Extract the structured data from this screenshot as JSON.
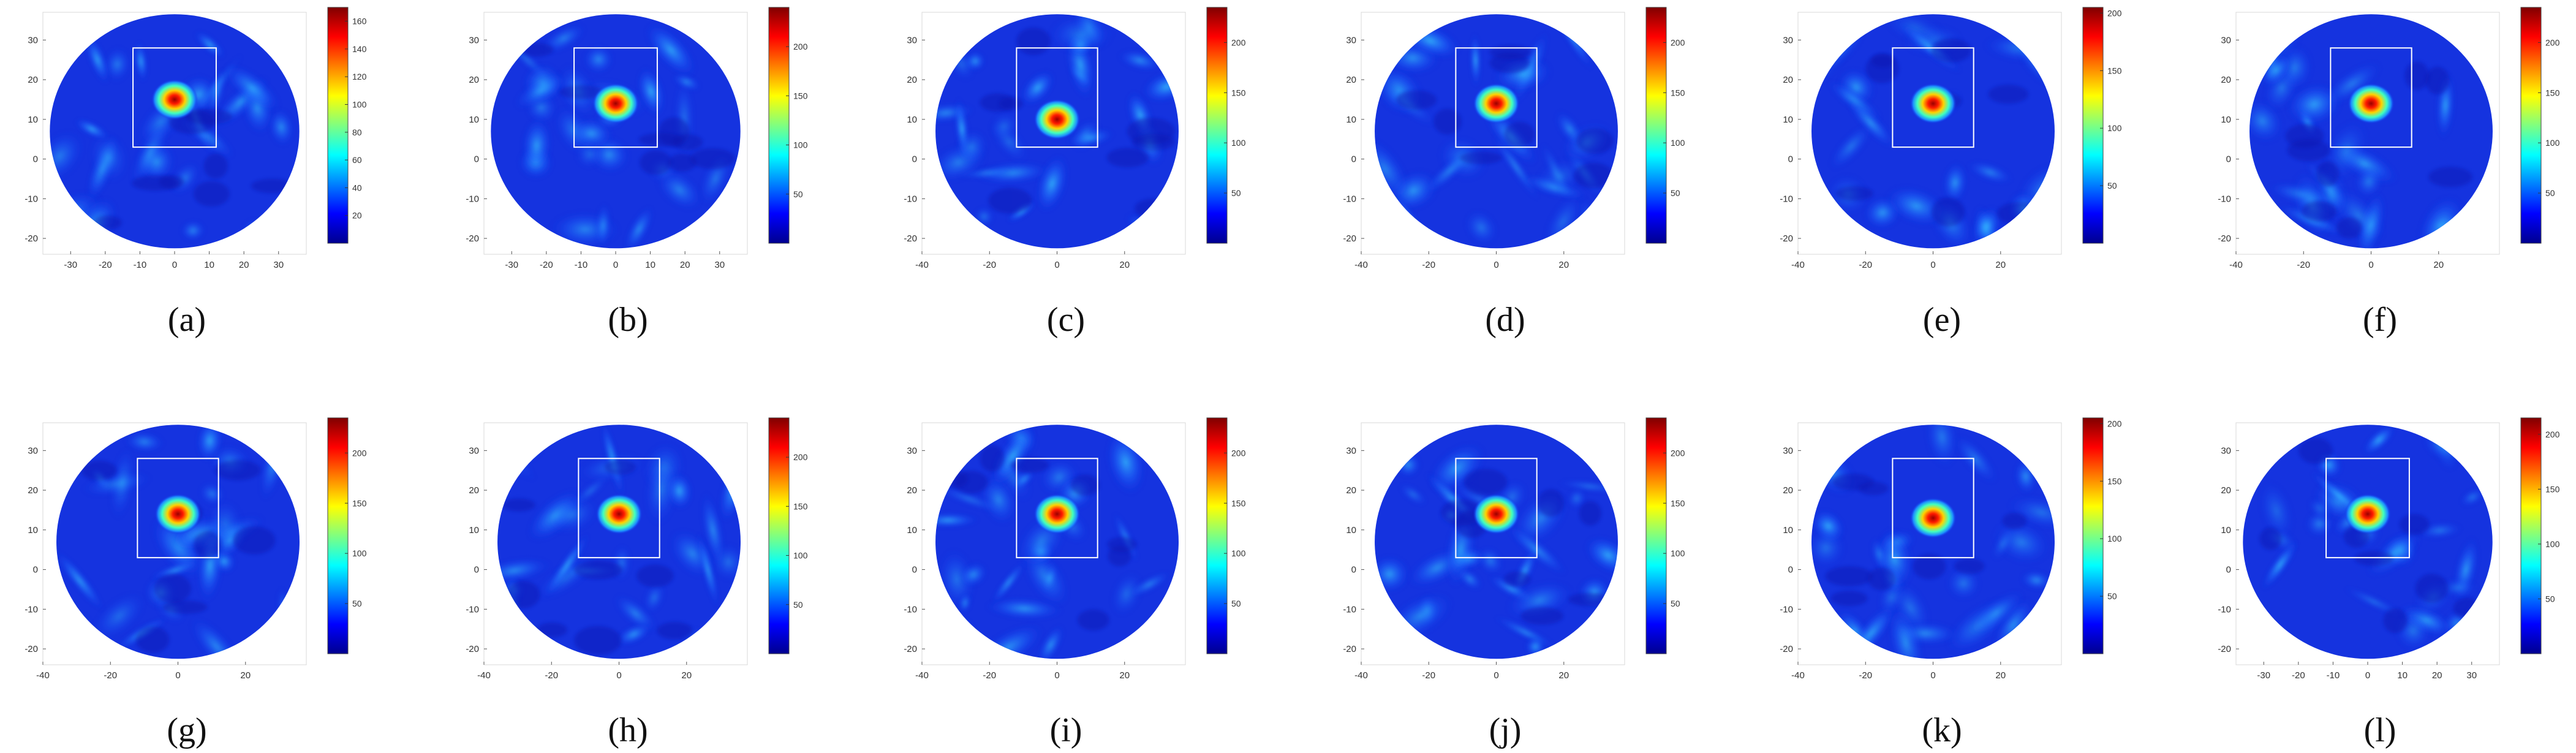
{
  "figure": {
    "panels": [
      {
        "label": "(a)",
        "x_ticks": [
          "-30",
          "-20",
          "-10",
          "0",
          "10",
          "20",
          "30"
        ],
        "y_ticks": [
          "-20",
          "-10",
          "0",
          "10",
          "20",
          "30"
        ],
        "cbar_ticks": [
          "20",
          "40",
          "60",
          "80",
          "100",
          "120",
          "140",
          "160"
        ]
      },
      {
        "label": "(b)",
        "x_ticks": [
          "-30",
          "-20",
          "-10",
          "0",
          "10",
          "20",
          "30"
        ],
        "y_ticks": [
          "-20",
          "-10",
          "0",
          "10",
          "20",
          "30"
        ],
        "cbar_ticks": [
          "50",
          "100",
          "150",
          "200"
        ]
      },
      {
        "label": "(c)",
        "x_ticks": [
          "-40",
          "-20",
          "0",
          "20"
        ],
        "y_ticks": [
          "-20",
          "-10",
          "0",
          "10",
          "20",
          "30"
        ],
        "cbar_ticks": [
          "50",
          "100",
          "150",
          "200"
        ]
      },
      {
        "label": "(d)",
        "x_ticks": [
          "-40",
          "-20",
          "0",
          "20"
        ],
        "y_ticks": [
          "-20",
          "-10",
          "0",
          "10",
          "20",
          "30"
        ],
        "cbar_ticks": [
          "50",
          "100",
          "150",
          "200"
        ]
      },
      {
        "label": "(e)",
        "x_ticks": [
          "-40",
          "-20",
          "0",
          "20"
        ],
        "y_ticks": [
          "-20",
          "-10",
          "0",
          "10",
          "20",
          "30"
        ],
        "cbar_ticks": [
          "50",
          "100",
          "150",
          "200"
        ]
      },
      {
        "label": "(f)",
        "x_ticks": [
          "-40",
          "-20",
          "0",
          "20"
        ],
        "y_ticks": [
          "-20",
          "-10",
          "0",
          "10",
          "20",
          "30"
        ],
        "cbar_ticks": [
          "50",
          "100",
          "150",
          "200"
        ]
      },
      {
        "label": "(g)",
        "x_ticks": [
          "-40",
          "-20",
          "0",
          "20"
        ],
        "y_ticks": [
          "-20",
          "-10",
          "0",
          "10",
          "20",
          "30"
        ],
        "cbar_ticks": [
          "50",
          "100",
          "150",
          "200"
        ]
      },
      {
        "label": "(h)",
        "x_ticks": [
          "-40",
          "-20",
          "0",
          "20"
        ],
        "y_ticks": [
          "-20",
          "-10",
          "0",
          "10",
          "20",
          "30"
        ],
        "cbar_ticks": [
          "50",
          "100",
          "150",
          "200"
        ]
      },
      {
        "label": "(i)",
        "x_ticks": [
          "-40",
          "-20",
          "0",
          "20"
        ],
        "y_ticks": [
          "-20",
          "-10",
          "0",
          "10",
          "20",
          "30"
        ],
        "cbar_ticks": [
          "50",
          "100",
          "150",
          "200"
        ]
      },
      {
        "label": "(j)",
        "x_ticks": [
          "-40",
          "-20",
          "0",
          "20"
        ],
        "y_ticks": [
          "-20",
          "-10",
          "0",
          "10",
          "20",
          "30"
        ],
        "cbar_ticks": [
          "50",
          "100",
          "150",
          "200"
        ]
      },
      {
        "label": "(k)",
        "x_ticks": [
          "-40",
          "-20",
          "0",
          "20"
        ],
        "y_ticks": [
          "-20",
          "-10",
          "0",
          "10",
          "20",
          "30"
        ],
        "cbar_ticks": [
          "50",
          "100",
          "150",
          "200"
        ]
      },
      {
        "label": "(l)",
        "x_ticks": [
          "-30",
          "-20",
          "-10",
          "0",
          "10",
          "20",
          "30"
        ],
        "y_ticks": [
          "-20",
          "-10",
          "0",
          "10",
          "20",
          "30"
        ],
        "cbar_ticks": [
          "50",
          "100",
          "150",
          "200"
        ]
      }
    ]
  },
  "chart_data": [
    {
      "type": "heatmap",
      "panel": "(a)",
      "colormap": "jet",
      "xlim": [
        -38,
        38
      ],
      "ylim": [
        -24,
        37
      ],
      "clim": [
        0,
        170
      ],
      "peak": {
        "x": 0,
        "y": 15,
        "value": 170
      },
      "target_box": {
        "x": [
          -12,
          12
        ],
        "y": [
          3,
          28
        ]
      }
    },
    {
      "type": "heatmap",
      "panel": "(b)",
      "colormap": "jet",
      "xlim": [
        -38,
        38
      ],
      "ylim": [
        -24,
        37
      ],
      "clim": [
        0,
        240
      ],
      "peak": {
        "x": 0,
        "y": 14,
        "value": 240
      },
      "target_box": {
        "x": [
          -12,
          12
        ],
        "y": [
          3,
          28
        ]
      }
    },
    {
      "type": "heatmap",
      "panel": "(c)",
      "colormap": "jet",
      "xlim": [
        -40,
        38
      ],
      "ylim": [
        -24,
        37
      ],
      "clim": [
        0,
        235
      ],
      "peak": {
        "x": 0,
        "y": 10,
        "value": 235
      },
      "target_box": {
        "x": [
          -12,
          12
        ],
        "y": [
          3,
          28
        ]
      }
    },
    {
      "type": "heatmap",
      "panel": "(d)",
      "colormap": "jet",
      "xlim": [
        -40,
        38
      ],
      "ylim": [
        -24,
        37
      ],
      "clim": [
        0,
        235
      ],
      "peak": {
        "x": 0,
        "y": 14,
        "value": 235
      },
      "target_box": {
        "x": [
          -12,
          12
        ],
        "y": [
          3,
          28
        ]
      }
    },
    {
      "type": "heatmap",
      "panel": "(e)",
      "colormap": "jet",
      "xlim": [
        -40,
        38
      ],
      "ylim": [
        -24,
        37
      ],
      "clim": [
        0,
        205
      ],
      "peak": {
        "x": 0,
        "y": 14,
        "value": 205
      },
      "target_box": {
        "x": [
          -12,
          12
        ],
        "y": [
          3,
          28
        ]
      }
    },
    {
      "type": "heatmap",
      "panel": "(f)",
      "colormap": "jet",
      "xlim": [
        -40,
        38
      ],
      "ylim": [
        -24,
        37
      ],
      "clim": [
        0,
        235
      ],
      "peak": {
        "x": 0,
        "y": 14,
        "value": 235
      },
      "target_box": {
        "x": [
          -12,
          12
        ],
        "y": [
          3,
          28
        ]
      }
    },
    {
      "type": "heatmap",
      "panel": "(g)",
      "colormap": "jet",
      "xlim": [
        -40,
        38
      ],
      "ylim": [
        -24,
        37
      ],
      "clim": [
        0,
        235
      ],
      "peak": {
        "x": 0,
        "y": 14,
        "value": 235
      },
      "target_box": {
        "x": [
          -12,
          12
        ],
        "y": [
          3,
          28
        ]
      }
    },
    {
      "type": "heatmap",
      "panel": "(h)",
      "colormap": "jet",
      "xlim": [
        -40,
        38
      ],
      "ylim": [
        -24,
        37
      ],
      "clim": [
        0,
        240
      ],
      "peak": {
        "x": 0,
        "y": 14,
        "value": 240
      },
      "target_box": {
        "x": [
          -12,
          12
        ],
        "y": [
          3,
          28
        ]
      }
    },
    {
      "type": "heatmap",
      "panel": "(i)",
      "colormap": "jet",
      "xlim": [
        -40,
        38
      ],
      "ylim": [
        -24,
        37
      ],
      "clim": [
        0,
        235
      ],
      "peak": {
        "x": 0,
        "y": 14,
        "value": 235
      },
      "target_box": {
        "x": [
          -12,
          12
        ],
        "y": [
          3,
          28
        ]
      }
    },
    {
      "type": "heatmap",
      "panel": "(j)",
      "colormap": "jet",
      "xlim": [
        -40,
        38
      ],
      "ylim": [
        -24,
        37
      ],
      "clim": [
        0,
        235
      ],
      "peak": {
        "x": 0,
        "y": 14,
        "value": 235
      },
      "target_box": {
        "x": [
          -12,
          12
        ],
        "y": [
          3,
          28
        ]
      }
    },
    {
      "type": "heatmap",
      "panel": "(k)",
      "colormap": "jet",
      "xlim": [
        -40,
        38
      ],
      "ylim": [
        -24,
        37
      ],
      "clim": [
        0,
        205
      ],
      "peak": {
        "x": 0,
        "y": 13,
        "value": 205
      },
      "target_box": {
        "x": [
          -12,
          12
        ],
        "y": [
          3,
          28
        ]
      }
    },
    {
      "type": "heatmap",
      "panel": "(l)",
      "colormap": "jet",
      "xlim": [
        -38,
        38
      ],
      "ylim": [
        -24,
        37
      ],
      "clim": [
        0,
        215
      ],
      "peak": {
        "x": 0,
        "y": 14,
        "value": 215
      },
      "target_box": {
        "x": [
          -12,
          12
        ],
        "y": [
          3,
          28
        ]
      }
    }
  ]
}
